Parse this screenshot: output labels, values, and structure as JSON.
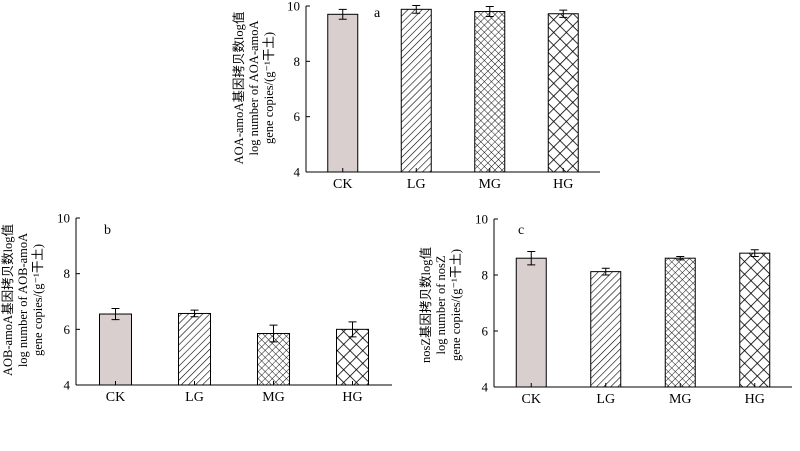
{
  "colors": {
    "ck_fill": "#d9cfcf",
    "axis": "#000000",
    "background": "#ffffff"
  },
  "chart_data": [
    {
      "id": "a",
      "type": "bar",
      "panel_label": "a",
      "ylabel": [
        "AOA-amoA基因拷贝数log值",
        "log number of AOA-amoA",
        "gene copies/(g⁻¹干土)"
      ],
      "ylim": [
        4,
        10
      ],
      "yticks": [
        4,
        6,
        8,
        10
      ],
      "categories": [
        "CK",
        "LG",
        "MG",
        "HG"
      ],
      "patterns": [
        "solid",
        "diagonal",
        "crosshatch",
        "lattice"
      ],
      "values": [
        9.7,
        9.88,
        9.8,
        9.72
      ],
      "errors": [
        0.18,
        0.14,
        0.18,
        0.13
      ]
    },
    {
      "id": "b",
      "type": "bar",
      "panel_label": "b",
      "ylabel": [
        "AOB-amoA基因拷贝数log值",
        "log number of AOB-amoA",
        "gene copies/(g⁻¹干土)"
      ],
      "ylim": [
        4,
        10
      ],
      "yticks": [
        4,
        6,
        8,
        10
      ],
      "categories": [
        "CK",
        "LG",
        "MG",
        "HG"
      ],
      "patterns": [
        "solid",
        "diagonal",
        "crosshatch",
        "lattice"
      ],
      "values": [
        6.55,
        6.57,
        5.85,
        6.0
      ],
      "errors": [
        0.2,
        0.12,
        0.3,
        0.27
      ]
    },
    {
      "id": "c",
      "type": "bar",
      "panel_label": "c",
      "ylabel": [
        "nosZ基因拷贝数log值",
        "log number of nosZ",
        "gene copies/(g⁻¹干土)"
      ],
      "ylim": [
        4,
        10
      ],
      "yticks": [
        4,
        6,
        8,
        10
      ],
      "categories": [
        "CK",
        "LG",
        "MG",
        "HG"
      ],
      "patterns": [
        "solid",
        "diagonal",
        "crosshatch",
        "lattice"
      ],
      "values": [
        8.6,
        8.12,
        8.6,
        8.78
      ],
      "errors": [
        0.24,
        0.12,
        0.06,
        0.12
      ]
    }
  ]
}
